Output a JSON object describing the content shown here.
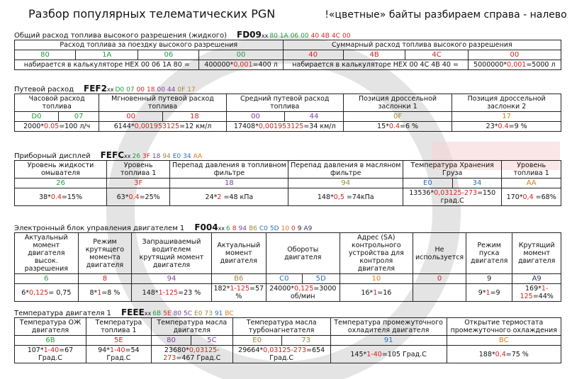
{
  "title": "Разбор популярных телематических PGN",
  "title_note": "!«цветные» байты разбираем справа - налево",
  "sections": [
    {
      "heading": "Общий расход топлива высокого разрешения (жидкого)",
      "pgn": "FD09",
      "xx": "xx",
      "header": [
        {
          "text": "Расход топлива за поездку высокого разрешения",
          "span": 4
        },
        {
          "text": "Суммарный расход топлива высокого разрешения",
          "span": 4
        }
      ],
      "bytes": [
        {
          "text": "80",
          "color": "#1f9c3a"
        },
        {
          "text": "1A",
          "color": "#1f9c3a"
        },
        {
          "text": "06",
          "color": "#1f9c3a"
        },
        {
          "text": "00",
          "color": "#1f9c3a"
        },
        {
          "text": "40",
          "color": "#d62020"
        },
        {
          "text": "4B",
          "color": "#d62020"
        },
        {
          "text": "4C",
          "color": "#d62020"
        },
        {
          "text": "00",
          "color": "#d62020"
        }
      ],
      "formulas": [
        {
          "parts": [
            "набирается в калькуляторе HEX 00 06 1A 80 ="
          ],
          "span": 3
        },
        {
          "parts": [
            "400000*",
            "0,001",
            "=400 л"
          ],
          "span": 1
        },
        {
          "parts": [
            "набирается в калькуляторе HEX 00 4C 4B 40 ="
          ],
          "span": 3
        },
        {
          "parts": [
            "5000000*",
            "0,001",
            "=5000 л"
          ],
          "span": 1
        }
      ]
    },
    {
      "heading": "Путевой расход",
      "pgn": "FEF2",
      "xx": "xx",
      "header": [
        {
          "text": "Часовой расход топлива",
          "span": 2
        },
        {
          "text": "Мгновенный путевой расход топлива",
          "span": 2
        },
        {
          "text": "Средний путевой расход топлива",
          "span": 2
        },
        {
          "text": "Позиция дроссельной заслонки 1",
          "span": 1
        },
        {
          "text": "Позиция дроссельной заслонки 2",
          "span": 1
        }
      ],
      "bytes": [
        {
          "text": "D0",
          "color": "#1f9c3a"
        },
        {
          "text": "07",
          "color": "#1f9c3a"
        },
        {
          "text": "00",
          "color": "#d62020"
        },
        {
          "text": "18",
          "color": "#d62020"
        },
        {
          "text": "00",
          "color": "#7b3fa0"
        },
        {
          "text": "44",
          "color": "#7b3fa0"
        },
        {
          "text": "0F",
          "color": "#9a8a3a"
        },
        {
          "text": "17",
          "color": "#c88a10"
        }
      ],
      "formulas": [
        {
          "parts": [
            "2000*",
            "0.05",
            "=100 л/ч"
          ],
          "span": 2
        },
        {
          "parts": [
            "6144*",
            "0,001953125",
            "=12 км/л"
          ],
          "span": 2
        },
        {
          "parts": [
            "17408*",
            "0,001953125",
            "=34 км/л"
          ],
          "span": 2
        },
        {
          "parts": [
            "15*",
            "0.4",
            "=6 %"
          ],
          "span": 1
        },
        {
          "parts": [
            "23*",
            "0.4",
            "=9 %"
          ],
          "span": 1
        }
      ]
    },
    {
      "heading": "Приборный дисплей",
      "pgn": "FEFC",
      "xx": "xx",
      "header": [
        {
          "text": "Уровень жидкости омывателя",
          "span": 1
        },
        {
          "text": "Уровень топлива 1",
          "span": 1
        },
        {
          "text": "Перепад давления в топливном фильтре",
          "span": 1
        },
        {
          "text": "Перепад давления в масляном фильтре",
          "span": 1
        },
        {
          "text": "Температура Хранения Груза",
          "span": 2
        },
        {
          "text": "Уровень топлива 1",
          "span": 1
        }
      ],
      "bytes": [
        {
          "text": "26",
          "color": "#1f9c3a"
        },
        {
          "text": "3F",
          "color": "#d62020"
        },
        {
          "text": "18",
          "color": "#7b3fa0"
        },
        {
          "text": "94",
          "color": "#9a8a3a"
        },
        {
          "text": "E0",
          "color": "#2a6fc0"
        },
        {
          "text": "34",
          "color": "#2a6fc0"
        },
        {
          "text": "AA",
          "color": "#e07a10"
        }
      ],
      "formulas": [
        {
          "parts": [
            "38*",
            "0.4",
            "=15%"
          ],
          "span": 1
        },
        {
          "parts": [
            "63*",
            "0.4",
            "=25%"
          ],
          "span": 1
        },
        {
          "parts": [
            "24*",
            "2",
            " =48 кПа"
          ],
          "span": 1
        },
        {
          "parts": [
            "148*",
            "0,5",
            " =74кПа"
          ],
          "span": 1
        },
        {
          "parts": [
            "13536*",
            "0,03125-273",
            "=150 град.С"
          ],
          "span": 2
        },
        {
          "parts": [
            "170*",
            "0,4",
            " =68%"
          ],
          "span": 1
        }
      ]
    },
    {
      "heading": "Электронный блок управления двигателем 1",
      "pgn": "F004",
      "xx": "xx",
      "header": [
        {
          "text": "Актуальный момент двигателя высок. разрешения",
          "span": 1
        },
        {
          "text": "Режим крутящего момента двигателя",
          "span": 1
        },
        {
          "text": "Запрашиваемый водителем крутящий момент двигателя",
          "span": 1
        },
        {
          "text": "Актуальный момент двигателя",
          "span": 1
        },
        {
          "text": "Обороты двигателя",
          "span": 2
        },
        {
          "text": "Адрес (SA) контрольного устройства для контроля двигателя",
          "span": 1
        },
        {
          "text": "Не используется",
          "span": 1
        },
        {
          "text": "Режим пуска двигателя",
          "span": 1
        },
        {
          "text": "Крутящий момент двигателя",
          "span": 1
        }
      ],
      "bytes": [
        {
          "text": "6",
          "color": "#1f9c3a"
        },
        {
          "text": "8",
          "color": "#d62020"
        },
        {
          "text": "94",
          "color": "#7b3fa0"
        },
        {
          "text": "B6",
          "color": "#9a8a3a"
        },
        {
          "text": "C0",
          "color": "#2a6fc0"
        },
        {
          "text": "5D",
          "color": "#2a6fc0"
        },
        {
          "text": "10",
          "color": "#e07a10"
        },
        {
          "text": "0",
          "color": "#d62020"
        },
        {
          "text": "9",
          "color": "#222222"
        },
        {
          "text": "A9",
          "color": "#333366"
        }
      ],
      "formulas": [
        {
          "parts": [
            "6*",
            "0,125",
            "= 0,75"
          ],
          "span": 1
        },
        {
          "parts": [
            "8*",
            "1",
            "=8 %"
          ],
          "span": 1
        },
        {
          "parts": [
            "148*",
            "1-125",
            "=23 %"
          ],
          "span": 1
        },
        {
          "parts": [
            "182*",
            "1-125",
            "=57 %"
          ],
          "span": 1
        },
        {
          "parts": [
            "24000*",
            "0,125",
            "=3000 об/мин"
          ],
          "span": 2
        },
        {
          "parts": [
            "16*",
            "1",
            "=16"
          ],
          "span": 1
        },
        {
          "parts": [],
          "span": 1
        },
        {
          "parts": [
            "9*",
            "1",
            "=9"
          ],
          "span": 1
        },
        {
          "parts": [
            "169*",
            "1-125",
            "=44%"
          ],
          "span": 1
        }
      ]
    },
    {
      "heading": "Температура двигателя 1",
      "pgn": "FEEE",
      "xx": "xx",
      "header": [
        {
          "text": "Температура ОЖ двигателя",
          "span": 1
        },
        {
          "text": "Температура топлива 1",
          "span": 1
        },
        {
          "text": "Температура масла двигателя",
          "span": 2
        },
        {
          "text": "Температура масла турбонагнетателя",
          "span": 2
        },
        {
          "text": "Температура промежуточного охладителя двигателя",
          "span": 1
        },
        {
          "text": "Открытие термостата промежуточного охлаждения",
          "span": 1
        }
      ],
      "bytes": [
        {
          "text": "6B",
          "color": "#1f9c3a"
        },
        {
          "text": "5E",
          "color": "#d62020"
        },
        {
          "text": "80",
          "color": "#7b3fa0"
        },
        {
          "text": "5C",
          "color": "#7b3fa0"
        },
        {
          "text": "E0",
          "color": "#9a8a3a"
        },
        {
          "text": "73",
          "color": "#9a8a3a"
        },
        {
          "text": "91",
          "color": "#2a6fc0"
        },
        {
          "text": "BC",
          "color": "#e07a10"
        }
      ],
      "formulas": [
        {
          "parts": [
            "107*",
            "1-40",
            "=67 Град.С"
          ],
          "span": 1
        },
        {
          "parts": [
            "94*",
            "1-40",
            "=54 Град.С"
          ],
          "span": 1
        },
        {
          "parts": [
            "23680*",
            "0,03125-273",
            "=467 Град.С"
          ],
          "span": 2
        },
        {
          "parts": [
            "29664*",
            "0,03125-273",
            "=654 Град.С"
          ],
          "span": 2
        },
        {
          "parts": [
            "145*",
            "1-40",
            "=105 Град.С"
          ],
          "span": 1
        },
        {
          "parts": [
            "188*",
            "0,4",
            "=75 %"
          ],
          "span": 1
        }
      ]
    }
  ]
}
